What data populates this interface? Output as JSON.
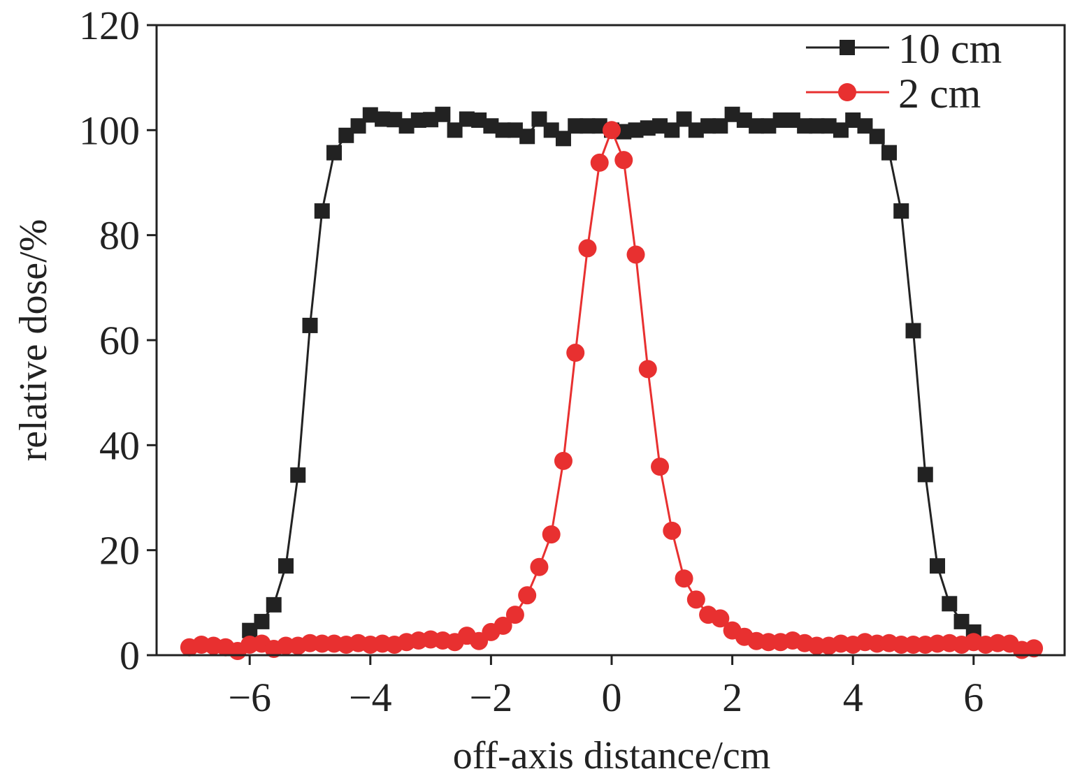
{
  "chart_data": {
    "type": "line",
    "title": "",
    "xlabel": "off-axis distance/cm",
    "ylabel": "relative dose/%",
    "xlim": [
      -7.5,
      7.5
    ],
    "ylim": [
      0,
      120
    ],
    "xticks": [
      -6,
      -4,
      -2,
      0,
      2,
      4,
      6
    ],
    "yticks": [
      0,
      20,
      40,
      60,
      80,
      100,
      120
    ],
    "xtick_labels": [
      "−6",
      "−4",
      "−2",
      "0",
      "2",
      "4",
      "6"
    ],
    "ytick_labels": [
      "0",
      "20",
      "40",
      "60",
      "80",
      "100",
      "120"
    ],
    "grid": false,
    "legend_position": "top-right",
    "series": [
      {
        "name": "10 cm",
        "color": "#222222",
        "marker": "square",
        "x_start": -6.0,
        "x_step": 0.2,
        "values": [
          4.7,
          6.4,
          9.6,
          17,
          34.3,
          62.8,
          84.6,
          95.7,
          99,
          100.8,
          102.9,
          102.1,
          102,
          100.8,
          101.9,
          102,
          103,
          100,
          102.1,
          101.9,
          100.8,
          100,
          100,
          98.8,
          102.1,
          100,
          98.4,
          100.8,
          100.8,
          100.8,
          100,
          99.7,
          100,
          100.4,
          100.8,
          100,
          102.1,
          100,
          100.8,
          100.8,
          103,
          101.9,
          100.8,
          100.8,
          101.9,
          101.9,
          100.8,
          100.8,
          100.8,
          100,
          101.9,
          100.8,
          98.8,
          95.7,
          84.6,
          61.8,
          34.4,
          17,
          9.8,
          6.4,
          4.4
        ]
      },
      {
        "name": "2 cm",
        "color": "#e83030",
        "marker": "circle",
        "x_start": -7.0,
        "x_step": 0.2,
        "values": [
          1.5,
          2,
          1.8,
          1.5,
          0.8,
          2,
          2.2,
          1.2,
          1.8,
          1.8,
          2.3,
          2.2,
          2.2,
          2,
          2.3,
          2,
          2.2,
          2,
          2.5,
          2.8,
          3,
          2.8,
          2.5,
          3.7,
          2.7,
          4.4,
          5.6,
          7.7,
          11.4,
          16.8,
          23,
          37,
          57.6,
          77.5,
          93.8,
          100,
          94.3,
          76.3,
          54.5,
          35.9,
          23.7,
          14.6,
          10.6,
          7.7,
          7,
          4.7,
          3.5,
          2.7,
          2.5,
          2.5,
          2.8,
          2.3,
          1.8,
          1.8,
          2.2,
          2,
          2.5,
          2.2,
          2.3,
          2,
          2,
          2,
          2.2,
          2.3,
          2,
          2.5,
          2,
          2.3,
          2.2,
          1,
          1.3
        ]
      }
    ]
  }
}
